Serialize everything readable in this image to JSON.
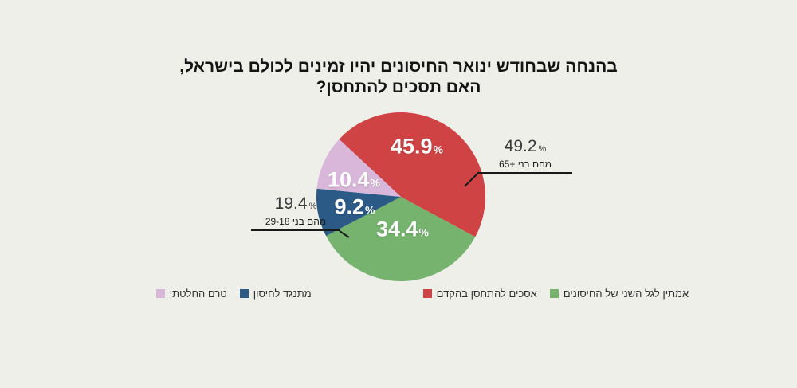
{
  "title": {
    "line1": "בהנחה שבחודש ינואר החיסונים יהיו זמינים לכולם בישראל,",
    "line2": "האם תסכים להתחסן?"
  },
  "chart_data": {
    "type": "pie",
    "title": "בהנחה שבחודש ינואר החיסונים יהיו זמינים לכולם בישראל, האם תסכים להתחסן?",
    "unit": "%",
    "start_angle_deg": 137,
    "direction": "clockwise",
    "slices": [
      {
        "label": "אסכים להתחסן בהקדם",
        "value": 45.9,
        "color": "#cf4345"
      },
      {
        "label": "אמתין לגל השני של החיסונים",
        "value": 34.4,
        "color": "#75b36e"
      },
      {
        "label": "מתנגד לחיסון",
        "value": 9.2,
        "color": "#2c5a87"
      },
      {
        "label": "טרם החלטתי",
        "value": 10.4,
        "color": "#d9b7da"
      }
    ],
    "legend_position": "bottom",
    "legend_order": [
      "טרם החלטתי",
      "מתנגד לחיסון",
      "אסכים להתחסן בהקדם",
      "אמתין לגל השני של החיסונים"
    ],
    "annotations": [
      {
        "value": "49.2",
        "unit": "%",
        "label": "מהם בני +65",
        "target": "אסכים להתחסן בהקדם"
      },
      {
        "value": "19.4",
        "unit": "%",
        "label": "מהם בני 29-18",
        "target": "מתנגד לחיסון"
      }
    ]
  },
  "colors": {
    "background": "#efefea",
    "title_text": "#141414",
    "callout_text": "#3a3a3a",
    "callout_line": "#1a1a1a",
    "legend_text": "#333333"
  }
}
